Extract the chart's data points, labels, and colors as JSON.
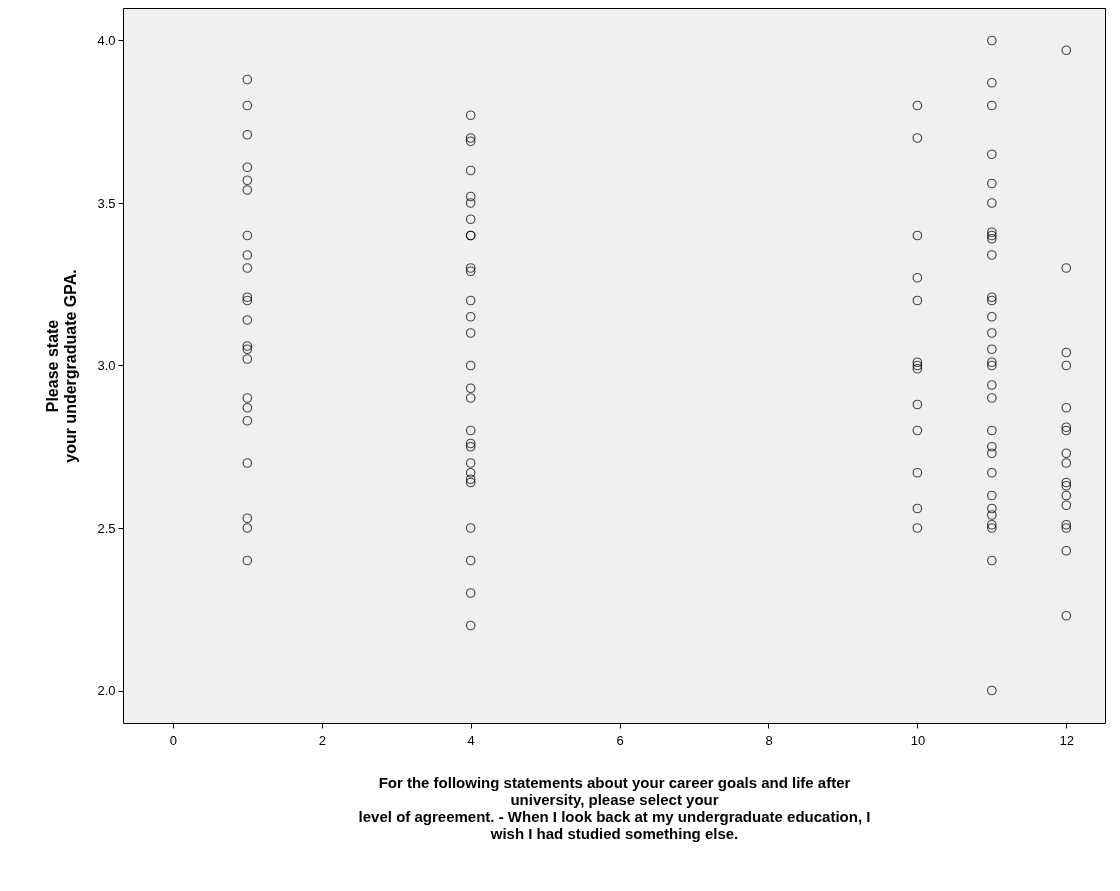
{
  "chart_data": {
    "type": "scatter",
    "xlabel": "For the following statements about your career goals and life after\nuniversity, please select your\nlevel of agreement. - When I look back at my undergraduate education, I\nwish I had studied something else.",
    "ylabel": "Please state\nyour undergraduate GPA.",
    "series": [
      {
        "color": "#000000",
        "x": [
          1,
          1,
          1,
          1,
          1,
          1,
          1,
          1,
          1,
          1,
          1,
          1,
          1,
          1,
          1,
          1,
          1,
          1,
          1,
          1,
          1,
          1,
          4,
          4,
          4,
          4,
          4,
          4,
          4,
          4,
          4,
          4,
          4,
          4,
          4,
          4,
          4,
          4,
          4,
          4,
          4,
          4,
          4,
          4,
          4,
          4,
          4,
          4,
          4,
          4,
          10,
          10,
          10,
          10,
          10,
          10,
          10,
          10,
          10,
          10,
          10,
          10,
          10,
          11,
          11,
          11,
          11,
          11,
          11,
          11,
          11,
          11,
          11,
          11,
          11,
          11,
          11,
          11,
          11,
          11,
          11,
          11,
          11,
          11,
          11,
          11,
          11,
          11,
          11,
          11,
          11,
          11,
          11,
          12,
          12,
          12,
          12,
          12,
          12,
          12,
          12,
          12,
          12,
          12,
          12,
          12,
          12,
          12,
          12,
          12
        ],
        "values": [
          3.88,
          3.8,
          3.71,
          3.61,
          3.57,
          3.54,
          3.4,
          3.34,
          3.3,
          3.21,
          3.2,
          3.14,
          3.06,
          3.05,
          3.02,
          2.9,
          2.87,
          2.83,
          2.7,
          2.53,
          2.5,
          2.4,
          3.77,
          3.7,
          3.69,
          3.6,
          3.52,
          3.5,
          3.45,
          3.4,
          3.4,
          3.3,
          3.29,
          3.2,
          3.15,
          3.1,
          3.0,
          2.93,
          2.9,
          2.8,
          2.76,
          2.75,
          2.7,
          2.67,
          2.65,
          2.64,
          2.5,
          2.4,
          2.3,
          2.2,
          3.8,
          3.7,
          3.4,
          3.27,
          3.2,
          3.01,
          3.0,
          2.99,
          2.88,
          2.8,
          2.67,
          2.56,
          2.5,
          4.0,
          3.87,
          3.8,
          3.65,
          3.56,
          3.5,
          3.41,
          3.4,
          3.39,
          3.34,
          3.21,
          3.2,
          3.15,
          3.1,
          3.05,
          3.01,
          3.0,
          2.94,
          2.9,
          2.8,
          2.75,
          2.73,
          2.67,
          2.6,
          2.56,
          2.54,
          2.51,
          2.5,
          2.4,
          2.0,
          3.97,
          3.3,
          3.04,
          3.0,
          2.87,
          2.81,
          2.8,
          2.73,
          2.7,
          2.64,
          2.63,
          2.6,
          2.57,
          2.51,
          2.5,
          2.43,
          2.23
        ]
      }
    ],
    "xlim": [
      -0.67,
      12.52
    ],
    "xticks": [
      0,
      2,
      4,
      6,
      8,
      10,
      12
    ],
    "ylim": [
      1.9,
      4.1
    ],
    "yticks": [
      {
        "value": 2,
        "label": "2.0"
      },
      {
        "value": 2.5,
        "label": "2.5"
      },
      {
        "value": 3,
        "label": "3.0"
      },
      {
        "value": 3.5,
        "label": "3.5"
      },
      {
        "value": 4,
        "label": "4.0"
      }
    ],
    "marker": "circle"
  }
}
